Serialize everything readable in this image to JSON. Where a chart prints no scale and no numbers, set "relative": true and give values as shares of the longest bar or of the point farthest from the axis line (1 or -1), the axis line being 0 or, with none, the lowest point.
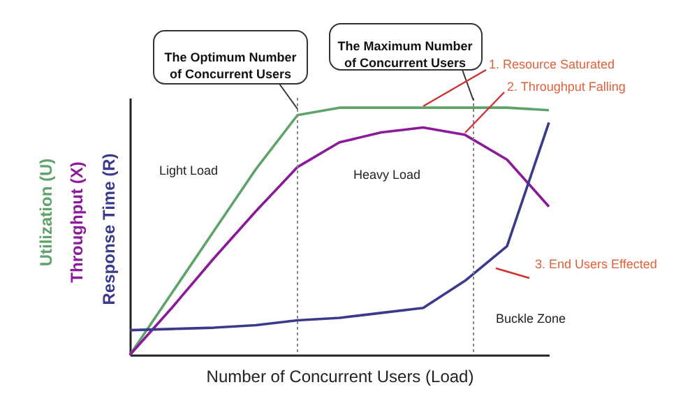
{
  "chart_data": {
    "type": "line",
    "relative": true,
    "xlabel": "Number of  Concurrent Users (Load)",
    "tick_labels": false,
    "grid": false,
    "marker": "none",
    "line_style": "solid",
    "categories": [
      null,
      null,
      null,
      null,
      null,
      null,
      null,
      null,
      null,
      null,
      null
    ],
    "series": [
      {
        "name": "Utilization (U)",
        "color": "#5fa36a",
        "values": [
          0,
          0.25,
          0.5,
          0.75,
          0.97,
          1.0,
          1.0,
          1.0,
          1.0,
          1.0,
          0.99
        ]
      },
      {
        "name": "Throughput (X)",
        "color": "#8b1a9a",
        "values": [
          0,
          0.19,
          0.39,
          0.58,
          0.76,
          0.86,
          0.9,
          0.92,
          0.89,
          0.79,
          0.6
        ]
      },
      {
        "name": "Response Time (R)",
        "color": "#3a3a8c",
        "values": [
          0.1,
          0.105,
          0.11,
          0.12,
          0.14,
          0.15,
          0.17,
          0.19,
          0.3,
          0.44,
          0.94
        ]
      }
    ],
    "annotations": [
      "The Optimum Number of Concurrent Users",
      "The Maximum Number of Concurrent Users",
      "Light Load",
      "Heavy Load",
      "Buckle Zone",
      "1. Resource Saturated",
      "2. Throughput Falling",
      "3. End Users Effected"
    ]
  }
}
